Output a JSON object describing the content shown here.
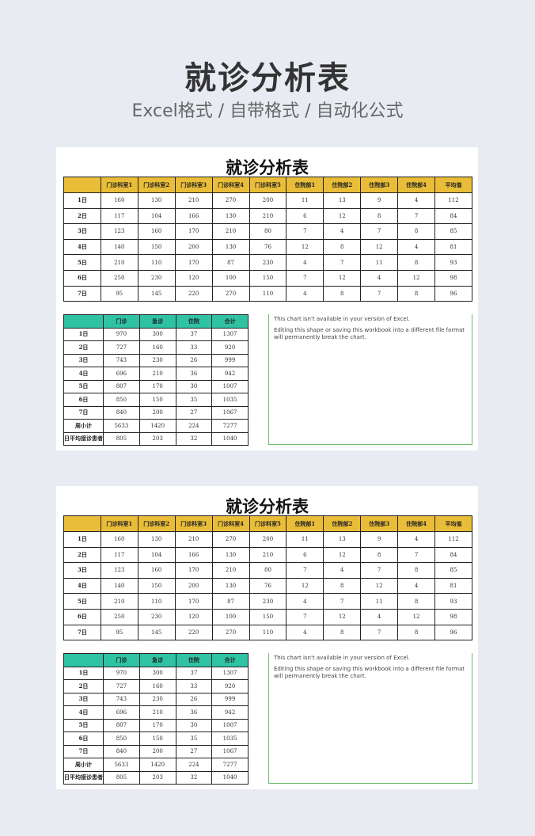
{
  "banner": {
    "title": "就诊分析表",
    "subtitle": "Excel格式 / 自带格式 / 自动化公式"
  },
  "sheet": {
    "title": "就诊分析表",
    "table1": {
      "headers": [
        "",
        "门诊科室1",
        "门诊科室2",
        "门诊科室3",
        "门诊科室4",
        "门诊科室5",
        "住院部1",
        "住院部2",
        "住院部3",
        "住院部4",
        "平均值"
      ],
      "rows": [
        [
          "1日",
          "160",
          "130",
          "210",
          "270",
          "200",
          "11",
          "13",
          "9",
          "4",
          "112"
        ],
        [
          "2日",
          "117",
          "104",
          "166",
          "130",
          "210",
          "6",
          "12",
          "8",
          "7",
          "84"
        ],
        [
          "3日",
          "123",
          "160",
          "170",
          "210",
          "80",
          "7",
          "4",
          "7",
          "8",
          "85"
        ],
        [
          "4日",
          "140",
          "150",
          "200",
          "130",
          "76",
          "12",
          "8",
          "12",
          "4",
          "81"
        ],
        [
          "5日",
          "210",
          "110",
          "170",
          "87",
          "230",
          "4",
          "7",
          "11",
          "8",
          "93"
        ],
        [
          "6日",
          "250",
          "230",
          "120",
          "100",
          "150",
          "7",
          "12",
          "4",
          "12",
          "98"
        ],
        [
          "7日",
          "95",
          "145",
          "220",
          "270",
          "110",
          "4",
          "8",
          "7",
          "8",
          "96"
        ]
      ],
      "header_color": "#e9bd38"
    },
    "table2": {
      "headers": [
        "",
        "门诊",
        "急诊",
        "住院",
        "合计"
      ],
      "rows": [
        [
          "1日",
          "970",
          "300",
          "37",
          "1307"
        ],
        [
          "2日",
          "727",
          "160",
          "33",
          "920"
        ],
        [
          "3日",
          "743",
          "230",
          "26",
          "999"
        ],
        [
          "4日",
          "696",
          "210",
          "36",
          "942"
        ],
        [
          "5日",
          "807",
          "170",
          "30",
          "1007"
        ],
        [
          "6日",
          "850",
          "150",
          "35",
          "1035"
        ],
        [
          "7日",
          "840",
          "200",
          "27",
          "1067"
        ],
        [
          "周小计",
          "5633",
          "1420",
          "224",
          "7277"
        ],
        [
          "日平均接诊患者",
          "805",
          "203",
          "32",
          "1040"
        ]
      ],
      "header_color": "#2fc3a4"
    },
    "chart_placeholder": {
      "line1": "This chart isn't available in your version of Excel.",
      "line2": "Editing this shape or saving this workbook into a different file format will permanently break the chart."
    }
  }
}
